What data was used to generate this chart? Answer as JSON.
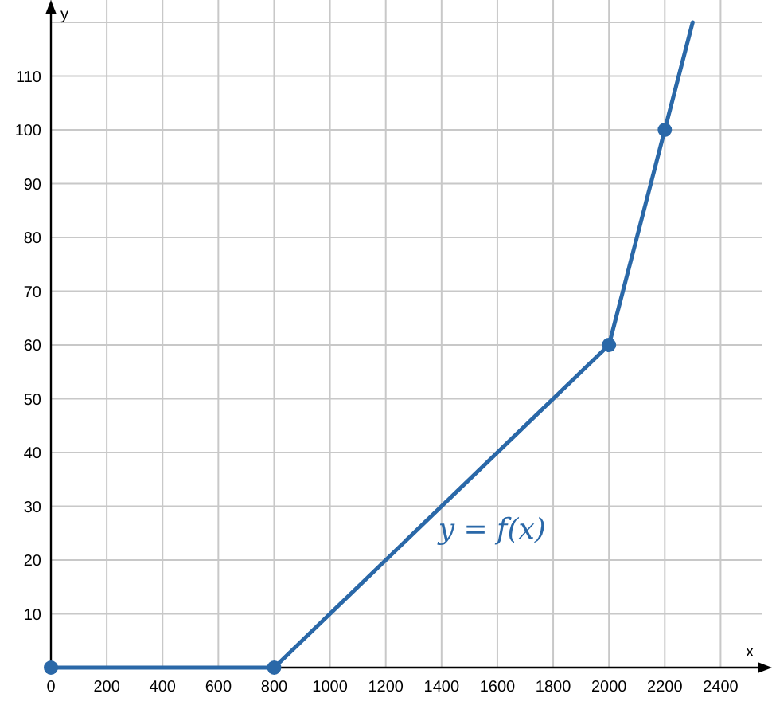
{
  "chart_data": {
    "type": "line",
    "xlabel": "x",
    "ylabel": "y",
    "xlim": [
      0,
      2550
    ],
    "ylim": [
      0,
      120
    ],
    "xticks": [
      0,
      200,
      400,
      600,
      800,
      1000,
      1200,
      1400,
      1600,
      1800,
      2000,
      2200,
      2400
    ],
    "yticks": [
      10,
      20,
      30,
      40,
      50,
      60,
      70,
      80,
      90,
      100,
      110
    ],
    "grid": true,
    "series": [
      {
        "color": "#2a68a8",
        "marker": "none",
        "line_style": "solid",
        "x": [
          0,
          800,
          2000,
          2200,
          2300
        ],
        "values": [
          0,
          0,
          60,
          100,
          120
        ]
      },
      {
        "type": "scatter",
        "color": "#2a68a8",
        "marker": "circle",
        "x": [
          0,
          800,
          2000,
          2200
        ],
        "values": [
          0,
          0,
          60,
          100
        ]
      }
    ],
    "annotations": [
      "y = f(x)"
    ]
  }
}
